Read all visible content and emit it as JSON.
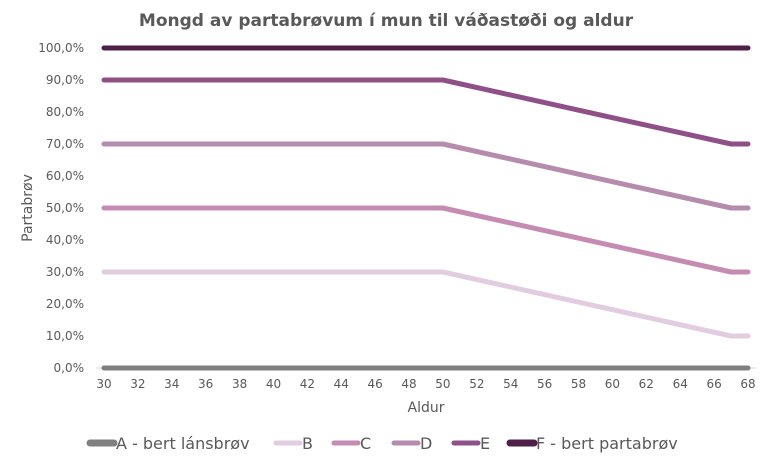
{
  "chart_data": {
    "type": "line",
    "title": "Mongd av partabrøvum í mun til váðastøði og aldur",
    "xlabel": "Aldur",
    "ylabel": "Partabrøv",
    "xlim": [
      30,
      68
    ],
    "ylim": [
      0,
      100
    ],
    "x_ticks": [
      "30",
      "32",
      "34",
      "36",
      "38",
      "40",
      "42",
      "44",
      "46",
      "48",
      "50",
      "52",
      "54",
      "56",
      "58",
      "60",
      "62",
      "64",
      "66",
      "68"
    ],
    "y_ticks": [
      "0,0%",
      "10,0%",
      "20,0%",
      "30,0%",
      "40,0%",
      "50,0%",
      "60,0%",
      "70,0%",
      "80,0%",
      "90,0%",
      "100,0%"
    ],
    "grid": false,
    "legend": "bottom",
    "x": [
      30,
      50,
      67,
      68
    ],
    "series": [
      {
        "name": "A - bert lánsbrøv",
        "values": [
          0,
          0,
          0,
          0
        ],
        "color": "#808080"
      },
      {
        "name": "B",
        "values": [
          30,
          30,
          10,
          10
        ],
        "color": "#e2cde0"
      },
      {
        "name": "C",
        "values": [
          50,
          50,
          30,
          30
        ],
        "color": "#c68bb3"
      },
      {
        "name": "D",
        "values": [
          70,
          70,
          50,
          50
        ],
        "color": "#b58bae"
      },
      {
        "name": "E",
        "values": [
          90,
          90,
          70,
          70
        ],
        "color": "#8f5087"
      },
      {
        "name": "F - bert partabrøv",
        "values": [
          100,
          100,
          100,
          100
        ],
        "color": "#4f1f47"
      }
    ]
  }
}
